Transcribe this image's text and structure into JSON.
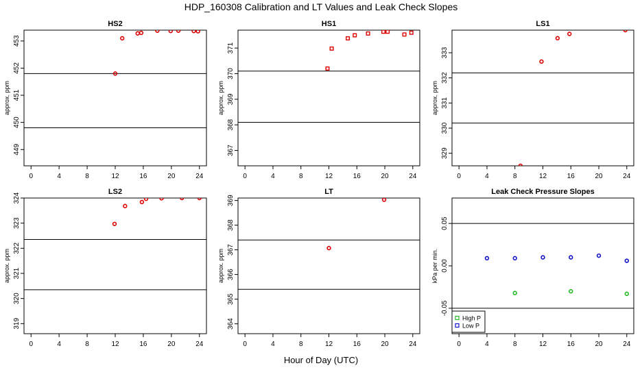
{
  "page": {
    "title": "HDP_160308  Calibration and LT Values and Leak Check Slopes",
    "x_axis_title": "Hour of Day (UTC)"
  },
  "chart_data": [
    {
      "id": "hs2",
      "type": "scatter",
      "title": "HS2",
      "ylabel": "approx. ppm",
      "xlim": [
        -1,
        25
      ],
      "ylim": [
        448.4,
        453.4
      ],
      "x_ticks": [
        0,
        4,
        8,
        12,
        16,
        20,
        24
      ],
      "y_ticks": [
        449,
        450,
        451,
        452,
        453
      ],
      "hlines": [
        449.8,
        451.8
      ],
      "color": "#dd0000",
      "marker": "circle",
      "points": [
        [
          12,
          451.8
        ],
        [
          13,
          453.1
        ],
        [
          15.2,
          453.28
        ],
        [
          15.7,
          453.3
        ],
        [
          18,
          453.38
        ],
        [
          19.9,
          453.37
        ],
        [
          21,
          453.38
        ],
        [
          23.2,
          453.37
        ],
        [
          23.8,
          453.36
        ]
      ]
    },
    {
      "id": "hs1",
      "type": "scatter",
      "title": "HS1",
      "ylabel": "approx. ppm",
      "xlim": [
        -1,
        25
      ],
      "ylim": [
        366.4,
        371.7
      ],
      "x_ticks": [
        0,
        4,
        8,
        12,
        16,
        20,
        24
      ],
      "y_ticks": [
        367,
        368,
        369,
        370,
        371
      ],
      "hlines": [
        368.1,
        370.1
      ],
      "color": "#dd0000",
      "marker": "square",
      "points": [
        [
          11.8,
          370.2
        ],
        [
          12.4,
          370.98
        ],
        [
          14.7,
          371.38
        ],
        [
          15.7,
          371.5
        ],
        [
          17.6,
          371.57
        ],
        [
          19.8,
          371.64
        ],
        [
          20.4,
          371.64
        ],
        [
          22.8,
          371.53
        ],
        [
          23.8,
          371.6
        ]
      ]
    },
    {
      "id": "ls1",
      "type": "scatter",
      "title": "LS1",
      "ylabel": "approx. ppm",
      "xlim": [
        -1,
        25
      ],
      "ylim": [
        328.5,
        333.9
      ],
      "x_ticks": [
        0,
        4,
        8,
        12,
        16,
        20,
        24
      ],
      "y_ticks": [
        329,
        330,
        331,
        332,
        333
      ],
      "hlines": [
        330.2,
        332.2
      ],
      "color": "#dd0000",
      "marker": "circle",
      "points": [
        [
          8.8,
          328.5
        ],
        [
          11.8,
          332.65
        ],
        [
          14.1,
          333.58
        ],
        [
          15.8,
          333.75
        ],
        [
          23.8,
          333.9
        ]
      ]
    },
    {
      "id": "ls2",
      "type": "scatter",
      "title": "LS2",
      "ylabel": "approx. ppm",
      "xlim": [
        -1,
        25
      ],
      "ylim": [
        318.6,
        324.0
      ],
      "x_ticks": [
        0,
        4,
        8,
        12,
        16,
        20,
        24
      ],
      "y_ticks": [
        319,
        320,
        321,
        322,
        323,
        324
      ],
      "hlines": [
        320.35,
        322.35
      ],
      "color": "#dd0000",
      "marker": "circle",
      "points": [
        [
          11.9,
          322.97
        ],
        [
          13.4,
          323.68
        ],
        [
          15.8,
          323.84
        ],
        [
          16.4,
          323.97
        ],
        [
          18.6,
          323.99
        ],
        [
          21.5,
          324.0
        ],
        [
          24,
          324.0
        ]
      ]
    },
    {
      "id": "lt",
      "type": "scatter",
      "title": "LT",
      "ylabel": "approx. ppm",
      "xlim": [
        -1,
        25
      ],
      "ylim": [
        363.6,
        369.1
      ],
      "x_ticks": [
        0,
        4,
        8,
        12,
        16,
        20,
        24
      ],
      "y_ticks": [
        364,
        365,
        366,
        367,
        368,
        369
      ],
      "hlines": [
        365.4,
        367.4
      ],
      "color": "#dd0000",
      "marker": "circle",
      "points": [
        [
          12,
          367.07
        ],
        [
          19.9,
          369.03
        ]
      ]
    },
    {
      "id": "leak",
      "type": "scatter",
      "title": "Leak Check Pressure Slopes",
      "ylabel": "kPa per min.",
      "xlim": [
        -1,
        25
      ],
      "ylim": [
        -0.08,
        0.08
      ],
      "x_ticks": [
        0,
        4,
        8,
        12,
        16,
        20,
        24
      ],
      "y_ticks": [
        -0.05,
        0.0,
        0.05
      ],
      "y_tick_labels": [
        "-0.05",
        "0.00",
        "0.05"
      ],
      "hlines": [
        -0.05,
        0.05
      ],
      "legend": {
        "position": "bottom-left",
        "entries": [
          "High P",
          "Low P"
        ]
      },
      "series": [
        {
          "name": "High P",
          "color": "#22bb22",
          "marker": "circle",
          "points": [
            [
              8,
              -0.032
            ],
            [
              16,
              -0.03
            ],
            [
              24,
              -0.033
            ]
          ]
        },
        {
          "name": "Low P",
          "color": "#1111cc",
          "marker": "circle",
          "points": [
            [
              4,
              0.009
            ],
            [
              8,
              0.009
            ],
            [
              12,
              0.01
            ],
            [
              16,
              0.01
            ],
            [
              20,
              0.012
            ],
            [
              24,
              0.006
            ]
          ]
        }
      ]
    }
  ]
}
